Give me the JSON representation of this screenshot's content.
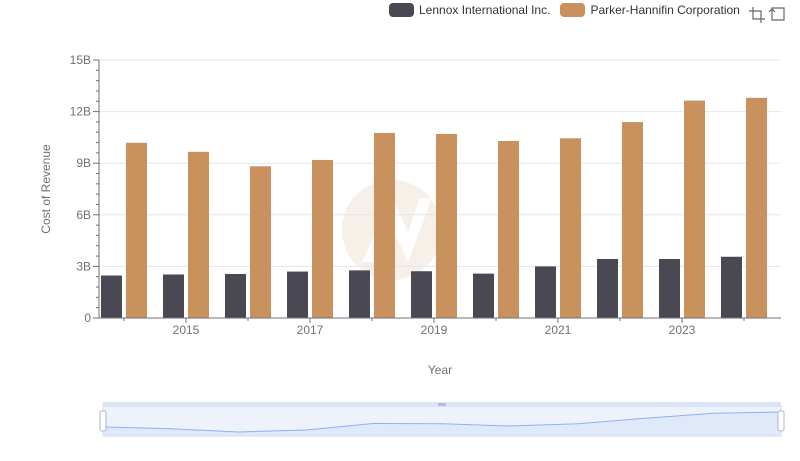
{
  "legend": {
    "series1": "Lennox International Inc.",
    "series2": "Parker-Hannifin Corporation"
  },
  "toolbar": {
    "icons": [
      "zoom-select-icon",
      "zoom-reset-icon"
    ]
  },
  "colors": {
    "series1": "#4a4953",
    "series2": "#c8915e",
    "axis": "#6e7079",
    "grid": "#e0e6f1",
    "slider_fill": "#d7e2fa"
  },
  "chart_data": {
    "type": "bar",
    "xlabel": "Year",
    "ylabel": "Cost of Revenue",
    "ylim": [
      0,
      15000000000
    ],
    "y_ticks": [
      "0",
      "3B",
      "6B",
      "9B",
      "12B",
      "15B"
    ],
    "x_tick_labels": [
      "2015",
      "2017",
      "2019",
      "2021",
      "2023"
    ],
    "categories": [
      "2014",
      "2015",
      "2016",
      "2017",
      "2018",
      "2019",
      "2020",
      "2021",
      "2022",
      "2023",
      "2024"
    ],
    "series": [
      {
        "name": "Lennox International Inc.",
        "values": [
          2470000000,
          2530000000,
          2560000000,
          2700000000,
          2770000000,
          2720000000,
          2580000000,
          3000000000,
          3430000000,
          3430000000,
          3560000000
        ]
      },
      {
        "name": "Parker-Hannifin Corporation",
        "values": [
          10190000000,
          9660000000,
          8820000000,
          9190000000,
          10760000000,
          10700000000,
          10290000000,
          10450000000,
          11390000000,
          12640000000,
          12800000000
        ]
      }
    ],
    "legend_position": "top-right",
    "grid": true,
    "data_zoom_slider": true
  }
}
